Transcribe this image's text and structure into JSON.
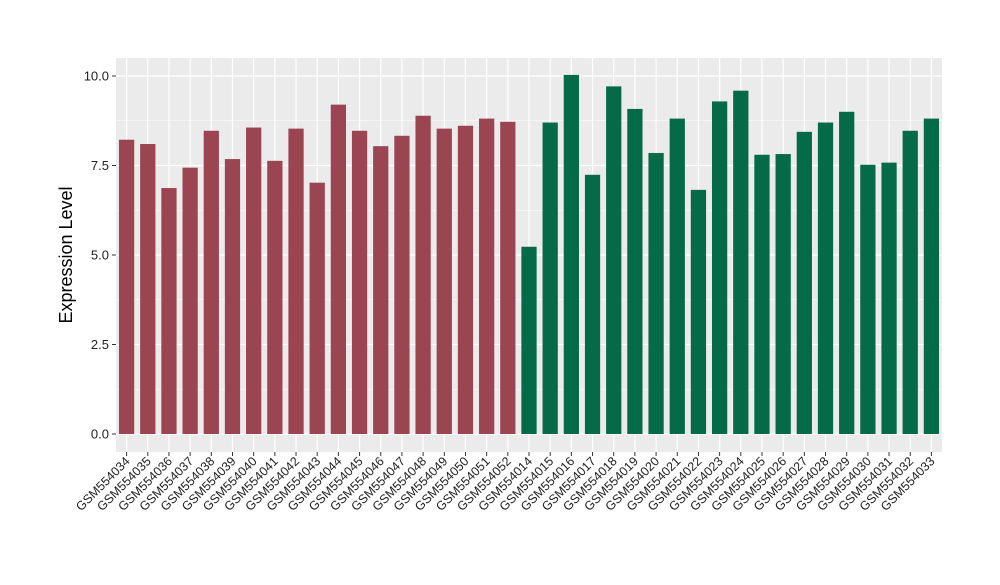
{
  "chart_data": {
    "type": "bar",
    "title": "",
    "xlabel": "",
    "ylabel": "Expression Level",
    "ylim": [
      0,
      10.25
    ],
    "yticks": [
      0.0,
      2.5,
      5.0,
      7.5,
      10.0
    ],
    "ytick_labels": [
      "0.0",
      "2.5",
      "5.0",
      "7.5",
      "10.0"
    ],
    "grid": true,
    "legend": "none",
    "colors": {
      "group1": "#9b4452",
      "group2": "#046a47",
      "panel": "#ebebeb",
      "grid": "#ffffff"
    },
    "categories": [
      "GSM554034",
      "GSM554035",
      "GSM554036",
      "GSM554037",
      "GSM554038",
      "GSM554039",
      "GSM554040",
      "GSM554041",
      "GSM554042",
      "GSM554043",
      "GSM554044",
      "GSM554045",
      "GSM554046",
      "GSM554047",
      "GSM554048",
      "GSM554049",
      "GSM554050",
      "GSM554051",
      "GSM554052",
      "GSM554014",
      "GSM554015",
      "GSM554016",
      "GSM554017",
      "GSM554018",
      "GSM554019",
      "GSM554020",
      "GSM554021",
      "GSM554022",
      "GSM554023",
      "GSM554024",
      "GSM554025",
      "GSM554026",
      "GSM554027",
      "GSM554028",
      "GSM554029",
      "GSM554030",
      "GSM554031",
      "GSM554032",
      "GSM554033"
    ],
    "values": [
      8.22,
      8.1,
      6.87,
      7.44,
      8.47,
      7.68,
      8.56,
      7.63,
      8.53,
      7.02,
      9.2,
      8.47,
      8.04,
      8.33,
      8.89,
      8.53,
      8.61,
      8.81,
      8.72,
      5.23,
      8.7,
      10.03,
      7.24,
      9.71,
      9.08,
      7.85,
      8.81,
      6.82,
      9.29,
      9.59,
      7.8,
      7.82,
      8.44,
      8.7,
      9.0,
      7.52,
      7.58,
      8.47,
      8.81
    ],
    "groups": [
      1,
      1,
      1,
      1,
      1,
      1,
      1,
      1,
      1,
      1,
      1,
      1,
      1,
      1,
      1,
      1,
      1,
      1,
      1,
      2,
      2,
      2,
      2,
      2,
      2,
      2,
      2,
      2,
      2,
      2,
      2,
      2,
      2,
      2,
      2,
      2,
      2,
      2,
      2
    ]
  }
}
